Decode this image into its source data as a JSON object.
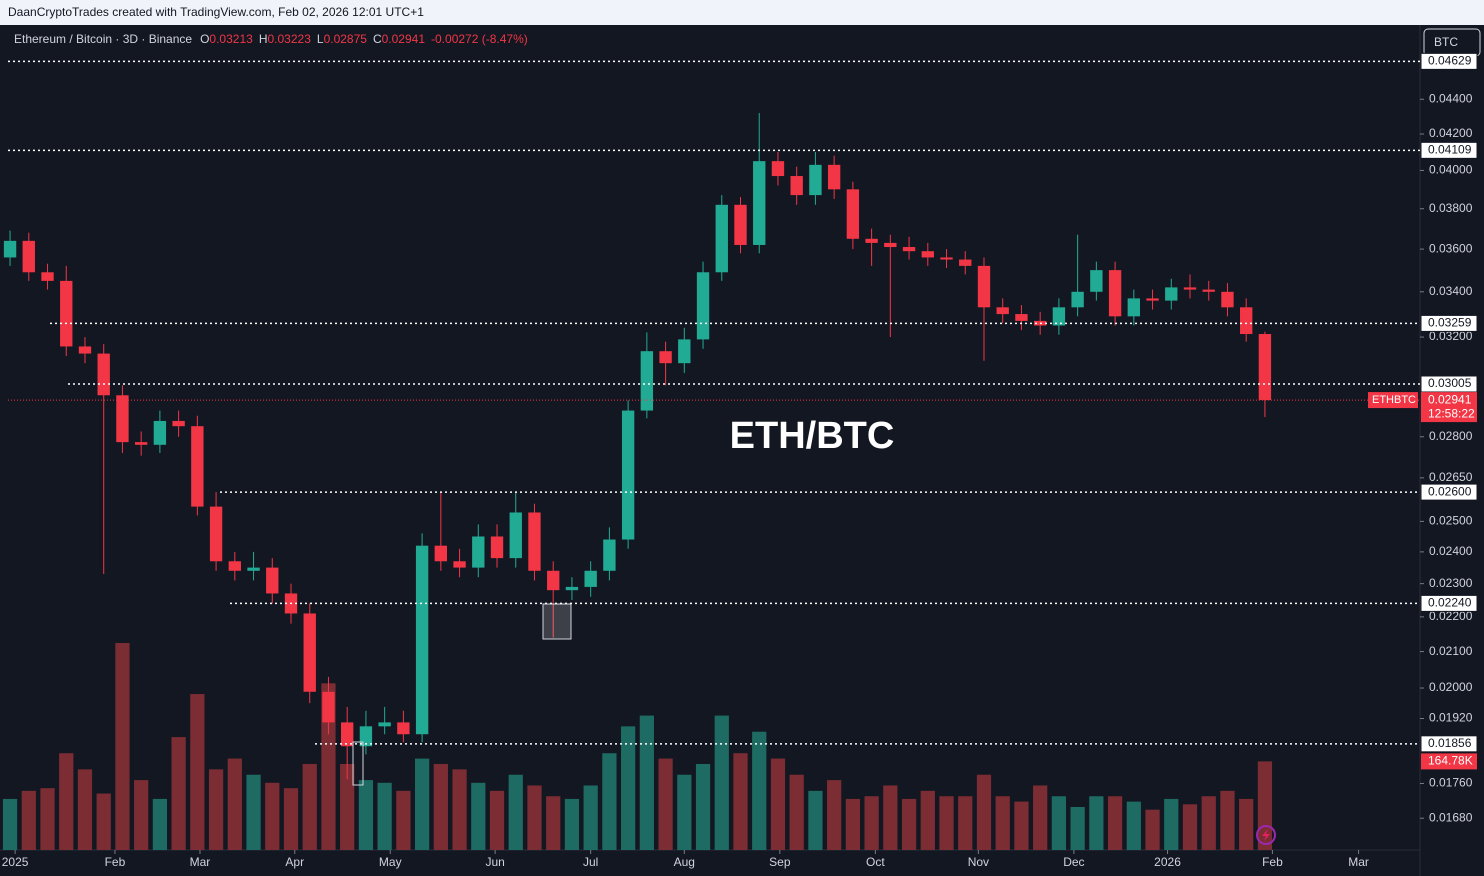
{
  "chart_data": {
    "type": "candlestick",
    "title": "DaanCryptoTrades created with TradingView.com, Feb 02, 2026 12:01 UTC+1",
    "symbol": "Ethereum / Bitcoin · 3D · Binance",
    "ohlc_letters": [
      "O",
      "H",
      "L",
      "C"
    ],
    "change": "-0.00272 (-8.47%)",
    "currency": "BTC",
    "annotation": "ETH/BTC",
    "symbol_tag": "ETHBTC",
    "countdown": "12:58:22",
    "log_scale": true,
    "up_color": "#22ab94",
    "down_color": "#f23645",
    "up_volume_color": "#1d6b63",
    "down_volume_color": "#7c2d33",
    "open": [
      0.0356,
      0.0364,
      0.0349,
      0.0345,
      0.0316,
      0.0313,
      0.0296,
      0.0278,
      0.0277,
      0.0286,
      0.0284,
      0.0255,
      0.0237,
      0.0234,
      0.0235,
      0.0227,
      0.0221,
      0.0199,
      0.0191,
      0.0185,
      0.019,
      0.0191,
      0.0188,
      0.0242,
      0.0237,
      0.0235,
      0.0245,
      0.0238,
      0.0253,
      0.0234,
      0.0228,
      0.0229,
      0.0234,
      0.0244,
      0.029,
      0.0314,
      0.0309,
      0.0319,
      0.0349,
      0.0382,
      0.0362,
      0.0405,
      0.0397,
      0.0387,
      0.0403,
      0.039,
      0.0365,
      0.0363,
      0.0361,
      0.0359,
      0.0356,
      0.0355,
      0.0352,
      0.0333,
      0.033,
      0.0327,
      0.0325,
      0.0333,
      0.034,
      0.035,
      0.0329,
      0.0337,
      0.0336,
      0.0342,
      0.0341,
      0.034,
      0.0333,
      0.03213
    ],
    "high": [
      0.0369,
      0.0368,
      0.0353,
      0.0352,
      0.032,
      0.0317,
      0.03,
      0.0282,
      0.029,
      0.029,
      0.0288,
      0.026,
      0.024,
      0.024,
      0.0238,
      0.023,
      0.0224,
      0.0203,
      0.0195,
      0.0194,
      0.0195,
      0.0194,
      0.0246,
      0.026,
      0.0241,
      0.0249,
      0.0249,
      0.026,
      0.0256,
      0.0237,
      0.0232,
      0.0237,
      0.0248,
      0.0294,
      0.0322,
      0.0318,
      0.0324,
      0.0354,
      0.0387,
      0.0386,
      0.0432,
      0.041,
      0.0402,
      0.041,
      0.0408,
      0.0394,
      0.037,
      0.0367,
      0.0366,
      0.0363,
      0.036,
      0.0359,
      0.0356,
      0.0337,
      0.0334,
      0.0331,
      0.0337,
      0.0367,
      0.0354,
      0.0354,
      0.0341,
      0.0341,
      0.0346,
      0.0348,
      0.0345,
      0.0344,
      0.0337,
      0.03223
    ],
    "low": [
      0.0352,
      0.0345,
      0.0341,
      0.0312,
      0.0309,
      0.0233,
      0.0274,
      0.0273,
      0.0274,
      0.028,
      0.0252,
      0.0234,
      0.0231,
      0.0231,
      0.0224,
      0.0218,
      0.0196,
      0.0188,
      0.0177,
      0.0183,
      0.0188,
      0.0186,
      0.0186,
      0.0234,
      0.0232,
      0.0232,
      0.0235,
      0.0235,
      0.0231,
      0.0214,
      0.0225,
      0.0226,
      0.0231,
      0.0241,
      0.0287,
      0.03,
      0.0305,
      0.0315,
      0.0345,
      0.0358,
      0.0358,
      0.0392,
      0.0382,
      0.0382,
      0.0385,
      0.036,
      0.0352,
      0.032,
      0.0355,
      0.0352,
      0.0351,
      0.0348,
      0.031,
      0.0326,
      0.0323,
      0.0321,
      0.0321,
      0.0329,
      0.0336,
      0.0325,
      0.0325,
      0.0332,
      0.0332,
      0.0337,
      0.0336,
      0.0329,
      0.0318,
      0.02875
    ],
    "close": [
      0.0364,
      0.0349,
      0.0345,
      0.0316,
      0.0313,
      0.0296,
      0.0278,
      0.0277,
      0.0286,
      0.0284,
      0.0255,
      0.0237,
      0.0234,
      0.0235,
      0.0227,
      0.0221,
      0.0199,
      0.0191,
      0.0185,
      0.019,
      0.0191,
      0.0188,
      0.0242,
      0.0237,
      0.0235,
      0.0245,
      0.0238,
      0.0253,
      0.0234,
      0.0228,
      0.0229,
      0.0234,
      0.0244,
      0.029,
      0.0314,
      0.0309,
      0.0319,
      0.0349,
      0.0382,
      0.0362,
      0.0405,
      0.0397,
      0.0387,
      0.0403,
      0.039,
      0.0365,
      0.0363,
      0.0361,
      0.0359,
      0.0356,
      0.0355,
      0.0352,
      0.0333,
      0.033,
      0.0327,
      0.0325,
      0.0333,
      0.034,
      0.035,
      0.0329,
      0.0337,
      0.0336,
      0.0342,
      0.0341,
      0.034,
      0.0333,
      0.03213,
      0.02941
    ],
    "volume": [
      95000,
      110000,
      115000,
      180000,
      150000,
      105000,
      385000,
      130000,
      95000,
      210000,
      290000,
      150000,
      170000,
      140000,
      125000,
      115000,
      160000,
      310000,
      160000,
      130000,
      125000,
      110000,
      170000,
      160000,
      150000,
      125000,
      110000,
      140000,
      120000,
      100000,
      95000,
      120000,
      180000,
      230000,
      250000,
      170000,
      140000,
      160000,
      250000,
      180000,
      220000,
      170000,
      140000,
      110000,
      130000,
      95000,
      100000,
      120000,
      95000,
      110000,
      100000,
      100000,
      140000,
      100000,
      90000,
      120000,
      100000,
      80000,
      100000,
      100000,
      90000,
      75000,
      95000,
      85000,
      100000,
      110000,
      95000,
      164780
    ],
    "volume_labels": [
      null,
      null,
      null,
      null,
      null,
      null,
      null,
      null,
      null,
      null,
      null,
      null,
      null,
      null,
      null,
      null,
      null,
      null,
      null,
      null,
      null,
      null,
      null,
      null,
      null,
      null,
      null,
      null,
      null,
      null,
      null,
      null,
      null,
      null,
      null,
      null,
      null,
      null,
      null,
      null,
      null,
      null,
      null,
      null,
      null,
      null,
      null,
      null,
      null,
      null,
      null,
      null,
      null,
      null,
      null,
      null,
      null,
      null,
      null,
      null,
      null,
      null,
      null,
      null,
      null,
      null,
      null,
      "164.78K"
    ],
    "xlim": [
      -0.11,
      75.28
    ],
    "xticks": [
      {
        "value": 0.27,
        "label": "2025"
      },
      {
        "value": 5.6,
        "label": "Feb"
      },
      {
        "value": 10.14,
        "label": "Mar"
      },
      {
        "value": 15.2,
        "label": "Apr"
      },
      {
        "value": 20.3,
        "label": "May"
      },
      {
        "value": 25.9,
        "label": "Jun"
      },
      {
        "value": 31.0,
        "label": "Jul"
      },
      {
        "value": 36.0,
        "label": "Aug"
      },
      {
        "value": 41.1,
        "label": "Sep"
      },
      {
        "value": 46.2,
        "label": "Oct"
      },
      {
        "value": 51.7,
        "label": "Nov"
      },
      {
        "value": 56.8,
        "label": "Dec"
      },
      {
        "value": 61.8,
        "label": "2026"
      },
      {
        "value": 67.4,
        "label": "Feb"
      },
      {
        "value": 72.0,
        "label": "Mar"
      }
    ],
    "ylim": [
      0.0161,
      0.0486
    ],
    "yticks": [
      {
        "value": 0.044,
        "label": "0.04400"
      },
      {
        "value": 0.042,
        "label": "0.04200"
      },
      {
        "value": 0.04,
        "label": "0.04000"
      },
      {
        "value": 0.038,
        "label": "0.03800"
      },
      {
        "value": 0.036,
        "label": "0.03600"
      },
      {
        "value": 0.034,
        "label": "0.03400"
      },
      {
        "value": 0.032,
        "label": "0.03200"
      },
      {
        "value": 0.028,
        "label": "0.02800"
      },
      {
        "value": 0.0265,
        "label": "0.02650"
      },
      {
        "value": 0.025,
        "label": "0.02500"
      },
      {
        "value": 0.024,
        "label": "0.02400"
      },
      {
        "value": 0.023,
        "label": "0.02300"
      },
      {
        "value": 0.022,
        "label": "0.02200"
      },
      {
        "value": 0.021,
        "label": "0.02100"
      },
      {
        "value": 0.02,
        "label": "0.02000"
      },
      {
        "value": 0.0192,
        "label": "0.01920"
      },
      {
        "value": 0.0176,
        "label": "0.01760"
      },
      {
        "value": 0.0168,
        "label": "0.01680"
      }
    ],
    "levels": [
      0.04629,
      0.04109,
      0.03259,
      0.03005,
      {
        "value": 0.026,
        "label": "0.02600"
      },
      {
        "value": 0.0224,
        "label": "0.02240"
      },
      0.01856
    ]
  }
}
